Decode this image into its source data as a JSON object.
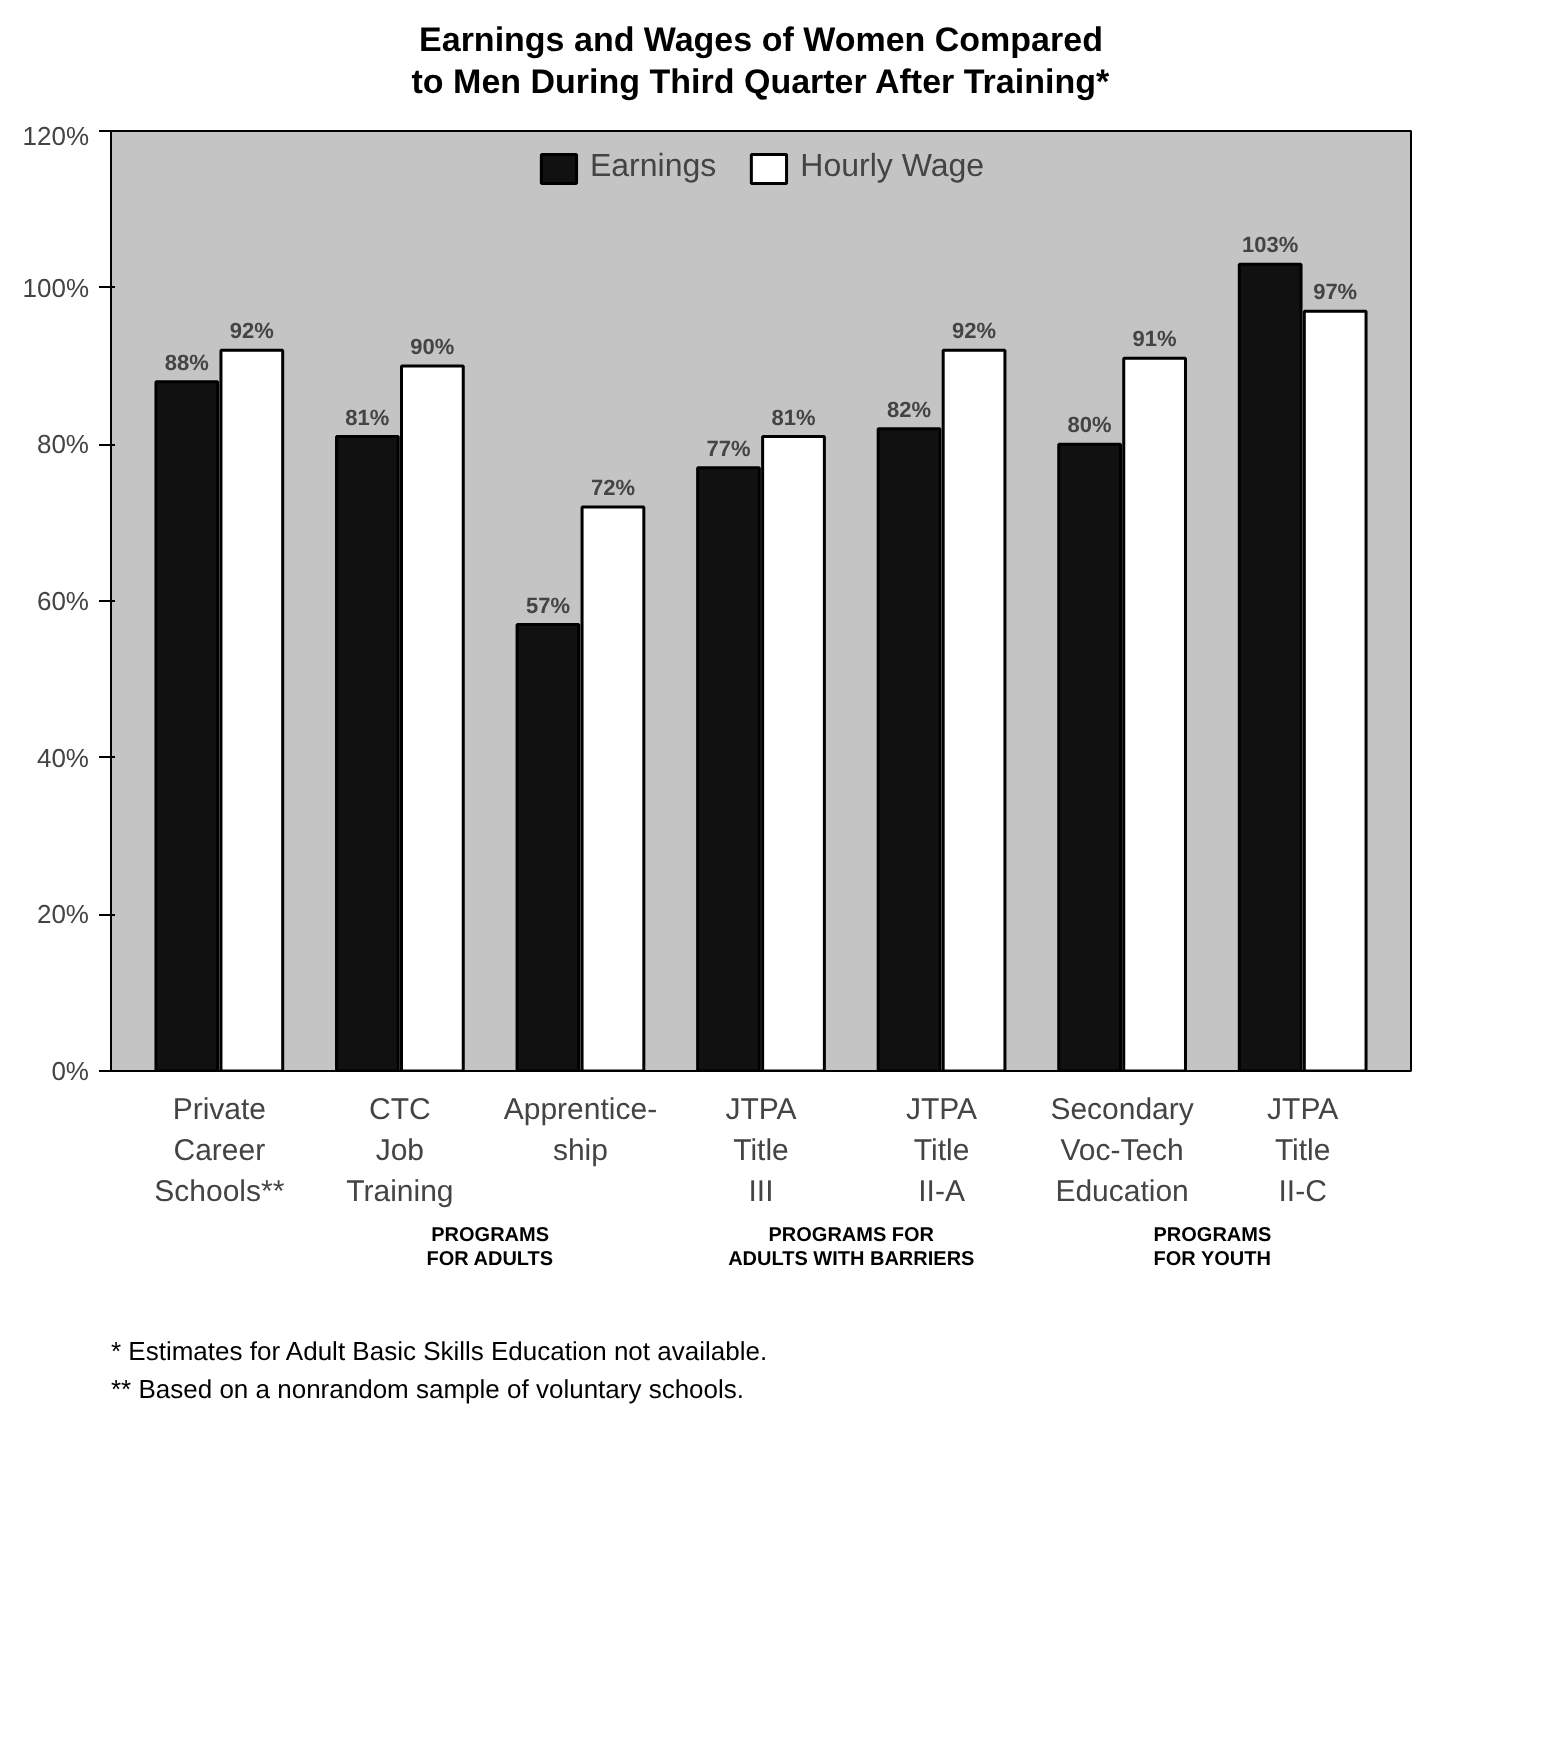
{
  "chart_data": {
    "type": "bar",
    "title": "Earnings and Wages of Women Compared\nto Men During Third Quarter After Training*",
    "categories": [
      "Private\nCareer\nSchools**",
      "CTC\nJob\nTraining",
      "Apprentice-\nship",
      "JTPA\nTitle\nIII",
      "JTPA\nTitle\nII-A",
      "Secondary\nVoc-Tech\nEducation",
      "JTPA\nTitle\nII-C"
    ],
    "series": [
      {
        "name": "Earnings",
        "color": "#111111",
        "values": [
          88,
          81,
          57,
          77,
          82,
          80,
          103
        ],
        "value_labels": [
          "88%",
          "81%",
          "57%",
          "77%",
          "82%",
          "80%",
          "103%"
        ]
      },
      {
        "name": "Hourly Wage",
        "color": "#ffffff",
        "values": [
          92,
          90,
          72,
          81,
          92,
          91,
          97
        ],
        "value_labels": [
          "92%",
          "90%",
          "72%",
          "81%",
          "92%",
          "91%",
          "97%"
        ]
      }
    ],
    "ylim": [
      0,
      120
    ],
    "yticks": [
      {
        "value": 0,
        "label": "0%"
      },
      {
        "value": 20,
        "label": "20%"
      },
      {
        "value": 40,
        "label": "40%"
      },
      {
        "value": 60,
        "label": "60%"
      },
      {
        "value": 80,
        "label": "80%"
      },
      {
        "value": 100,
        "label": "100%"
      },
      {
        "value": 120,
        "label": "120%"
      }
    ],
    "legend": "top",
    "grid": false,
    "annotations": [
      "PROGRAMS\nFOR ADULTS",
      "PROGRAMS FOR\nADULTS WITH BARRIERS",
      "PROGRAMS\nFOR YOUTH",
      "* Estimates for Adult Basic Skills Education not available.",
      "** Based on a nonrandom sample of voluntary schools."
    ]
  }
}
